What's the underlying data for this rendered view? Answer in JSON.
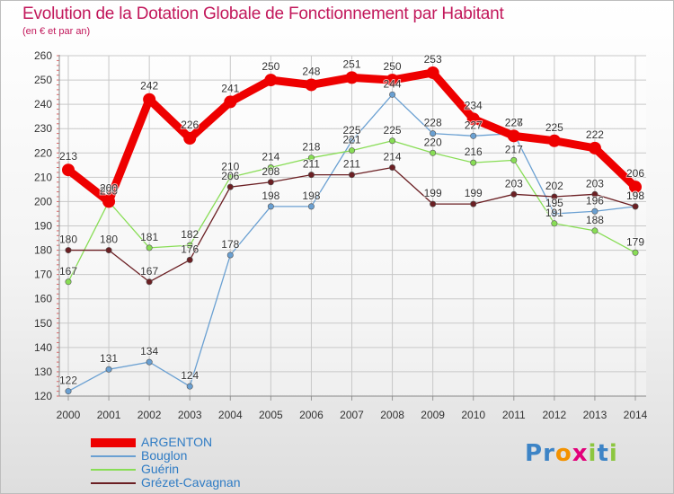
{
  "chart_data": {
    "type": "line",
    "title": "Evolution de la Dotation Globale de Fonctionnement par Habitant",
    "subtitle": "(en € et par an)",
    "xlabel": "",
    "ylabel": "",
    "ylim": [
      120,
      260
    ],
    "y_ticks": [
      120,
      130,
      140,
      150,
      160,
      170,
      180,
      190,
      200,
      210,
      220,
      230,
      240,
      250,
      260
    ],
    "x": [
      "2000",
      "2001",
      "2002",
      "2003",
      "2004",
      "2005",
      "2006",
      "2007",
      "2008",
      "2009",
      "2010",
      "2011",
      "2012",
      "2013",
      "2014"
    ],
    "grid": true,
    "legend_position": "bottom-left",
    "series": [
      {
        "name": "ARGENTON",
        "color": "#ee0000",
        "values": [
          213,
          200,
          242,
          226,
          241,
          250,
          248,
          251,
          250,
          253,
          234,
          227,
          225,
          222,
          206
        ]
      },
      {
        "name": "Bouglon",
        "color": "#6aa0d2",
        "values": [
          122,
          131,
          134,
          124,
          178,
          198,
          198,
          225,
          244,
          228,
          227,
          228,
          195,
          196,
          198
        ]
      },
      {
        "name": "Guérin",
        "color": "#88dd55",
        "values": [
          167,
          200,
          181,
          182,
          210,
          214,
          218,
          221,
          225,
          220,
          216,
          217,
          191,
          188,
          179
        ]
      },
      {
        "name": "Grézet-Cavagnan",
        "color": "#6b1f23",
        "values": [
          180,
          180,
          167,
          176,
          206,
          208,
          211,
          211,
          214,
          199,
          199,
          203,
          202,
          203,
          198
        ]
      }
    ]
  },
  "logo": {
    "letters": [
      {
        "char": "P",
        "color": "#3d84c6"
      },
      {
        "char": "r",
        "color": "#3d84c6"
      },
      {
        "char": "o",
        "color": "#f39200"
      },
      {
        "char": "x",
        "color": "#e2007a"
      },
      {
        "char": "i",
        "color": "#8cc63f"
      },
      {
        "char": "t",
        "color": "#3d84c6"
      },
      {
        "char": "i",
        "color": "#8cc63f"
      }
    ]
  }
}
